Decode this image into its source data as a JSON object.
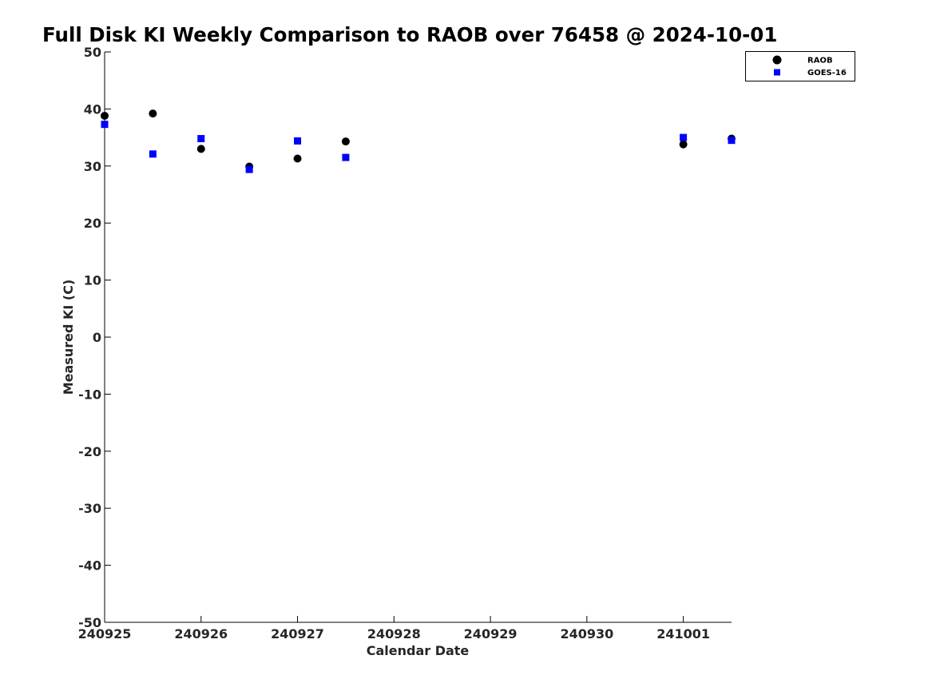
{
  "chart_data": {
    "type": "scatter",
    "title": "Full Disk KI Weekly Comparison to RAOB over 76458 @ 2024-10-01",
    "xlabel": "Calendar Date",
    "ylabel": "Measured KI (C)",
    "xlim": [
      "240925",
      "241001.5"
    ],
    "ylim": [
      -50,
      50
    ],
    "x_ticks": [
      "240925",
      "240926",
      "240927",
      "240928",
      "240929",
      "240930",
      "241001"
    ],
    "y_ticks": [
      50,
      40,
      30,
      20,
      10,
      0,
      -10,
      -20,
      -30,
      -40,
      -50
    ],
    "grid": false,
    "legend_position": "top-right",
    "series": [
      {
        "name": "RAOB",
        "marker": "circle",
        "color": "#000000",
        "points": [
          {
            "date": "240925 00Z",
            "value": 38.8
          },
          {
            "date": "240925 12Z",
            "value": 39.2
          },
          {
            "date": "240926 00Z",
            "value": 33.0
          },
          {
            "date": "240926 12Z",
            "value": 29.9
          },
          {
            "date": "240927 00Z",
            "value": 31.3
          },
          {
            "date": "240927 12Z",
            "value": 34.3
          },
          {
            "date": "241001 00Z",
            "value": 33.8
          },
          {
            "date": "241001 12Z",
            "value": 34.8
          }
        ]
      },
      {
        "name": "GOES-16",
        "marker": "square",
        "color": "#0000ff",
        "points": [
          {
            "date": "240925 00Z",
            "value": 37.3
          },
          {
            "date": "240925 12Z",
            "value": 32.1
          },
          {
            "date": "240926 00Z",
            "value": 34.8
          },
          {
            "date": "240926 12Z",
            "value": 29.4
          },
          {
            "date": "240927 00Z",
            "value": 34.4
          },
          {
            "date": "240927 12Z",
            "value": 31.5
          },
          {
            "date": "241001 00Z",
            "value": 35.0
          },
          {
            "date": "241001 12Z",
            "value": 34.5
          }
        ]
      }
    ]
  }
}
